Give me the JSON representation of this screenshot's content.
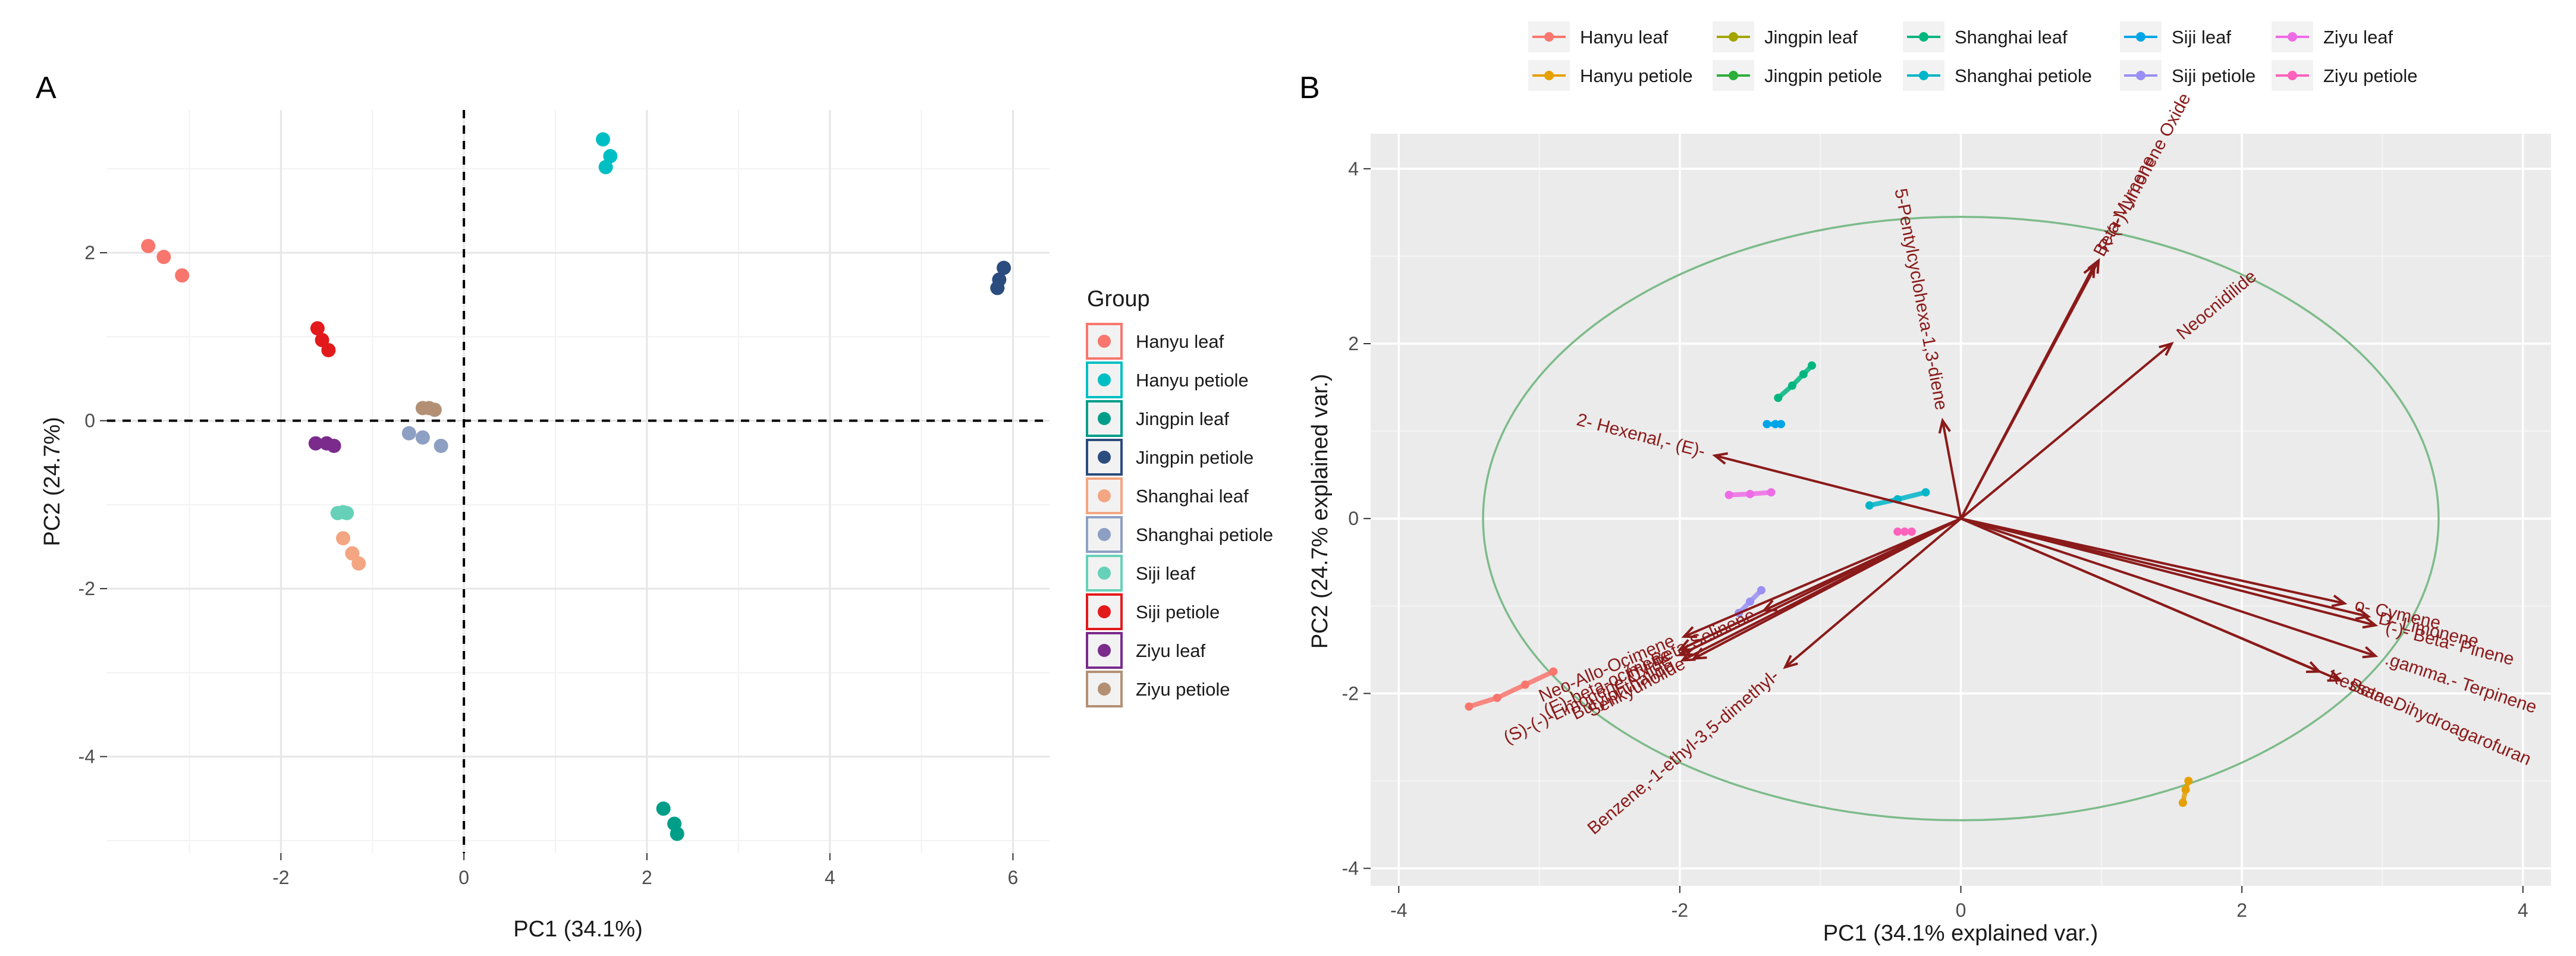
{
  "chart_data": [
    {
      "panel": "A",
      "type": "scatter",
      "xlabel": "PC1 (34.1%)",
      "ylabel": "PC2 (24.7%)",
      "xlim": [
        -3.9,
        6.4
      ],
      "ylim": [
        -5.15,
        3.7
      ],
      "xticks": [
        -2,
        0,
        2,
        4,
        6
      ],
      "yticks": [
        -4,
        -2,
        0,
        2
      ],
      "grid": true,
      "reference_lines": {
        "x": 0,
        "y": 0,
        "style": "dashed"
      },
      "legend_title": "Group",
      "legend_position": "right",
      "groups": [
        {
          "name": "Hanyu leaf",
          "color": "#F8766D",
          "points": [
            [
              -3.45,
              2.08
            ],
            [
              -3.28,
              1.95
            ],
            [
              -3.08,
              1.73
            ]
          ]
        },
        {
          "name": "Hanyu petiole",
          "color": "#00BFC4",
          "points": [
            [
              1.52,
              3.35
            ],
            [
              1.6,
              3.15
            ],
            [
              1.55,
              3.02
            ]
          ]
        },
        {
          "name": "Jingpin leaf",
          "color": "#009E89",
          "points": [
            [
              2.18,
              -4.62
            ],
            [
              2.3,
              -4.8
            ],
            [
              2.33,
              -4.92
            ]
          ]
        },
        {
          "name": "Jingpin petiole",
          "color": "#2B4C7E",
          "points": [
            [
              5.9,
              1.82
            ],
            [
              5.85,
              1.68
            ],
            [
              5.83,
              1.58
            ]
          ]
        },
        {
          "name": "Shanghai leaf",
          "color": "#F4A582",
          "points": [
            [
              -1.32,
              -1.4
            ],
            [
              -1.22,
              -1.58
            ],
            [
              -1.15,
              -1.7
            ]
          ]
        },
        {
          "name": "Shanghai petiole",
          "color": "#8D9FC3",
          "points": [
            [
              -0.6,
              -0.15
            ],
            [
              -0.45,
              -0.2
            ],
            [
              -0.25,
              -0.3
            ]
          ]
        },
        {
          "name": "Siji leaf",
          "color": "#66D1B8",
          "points": [
            [
              -1.38,
              -1.1
            ],
            [
              -1.32,
              -1.09
            ],
            [
              -1.28,
              -1.1
            ]
          ]
        },
        {
          "name": "Siji petiole",
          "color": "#E31A1C",
          "points": [
            [
              -1.6,
              1.1
            ],
            [
              -1.55,
              0.96
            ],
            [
              -1.48,
              0.84
            ]
          ]
        },
        {
          "name": "Ziyu leaf",
          "color": "#7B2B8C",
          "points": [
            [
              -1.62,
              -0.27
            ],
            [
              -1.5,
              -0.27
            ],
            [
              -1.42,
              -0.3
            ]
          ]
        },
        {
          "name": "Ziyu petiole",
          "color": "#B39074",
          "points": [
            [
              -0.45,
              0.15
            ],
            [
              -0.38,
              0.15
            ],
            [
              -0.32,
              0.13
            ]
          ]
        }
      ]
    },
    {
      "panel": "B",
      "type": "biplot",
      "xlabel": "PC1 (34.1% explained var.)",
      "ylabel": "PC2 (24.7% explained var.)",
      "xlim": [
        -4.2,
        4.2
      ],
      "ylim": [
        -4.2,
        4.4
      ],
      "xticks": [
        -4,
        -2,
        0,
        2,
        4
      ],
      "yticks": [
        -4,
        -2,
        0,
        2,
        4
      ],
      "grid": true,
      "legend_position": "top",
      "circle": {
        "center": [
          0,
          0
        ],
        "rx": 3.4,
        "ry": 3.45,
        "color": "#7DBB8A"
      },
      "groups": [
        {
          "name": "Hanyu leaf",
          "color": "#F8766D",
          "points": [
            [
              -3.5,
              -2.15
            ],
            [
              -3.3,
              -2.05
            ],
            [
              -3.1,
              -1.9
            ],
            [
              -2.9,
              -1.75
            ]
          ]
        },
        {
          "name": "Hanyu petiole",
          "color": "#E69F00",
          "points": [
            [
              1.58,
              -3.25
            ],
            [
              1.6,
              -3.1
            ],
            [
              1.62,
              -3.0
            ]
          ]
        },
        {
          "name": "Jingpin leaf",
          "color": "#A3A500",
          "points": []
        },
        {
          "name": "Jingpin petiole",
          "color": "#2CAE3A",
          "points": []
        },
        {
          "name": "Shanghai leaf",
          "color": "#00B67F",
          "points": [
            [
              -1.3,
              1.38
            ],
            [
              -1.2,
              1.52
            ],
            [
              -1.12,
              1.65
            ],
            [
              -1.06,
              1.75
            ]
          ]
        },
        {
          "name": "Shanghai petiole",
          "color": "#00B5C8",
          "points": [
            [
              -0.65,
              0.15
            ],
            [
              -0.45,
              0.22
            ],
            [
              -0.25,
              0.3
            ]
          ]
        },
        {
          "name": "Siji leaf",
          "color": "#00A5E8",
          "points": [
            [
              -1.38,
              1.08
            ],
            [
              -1.32,
              1.08
            ],
            [
              -1.28,
              1.08
            ]
          ]
        },
        {
          "name": "Siji petiole",
          "color": "#9A8FF4",
          "points": [
            [
              -1.58,
              -1.08
            ],
            [
              -1.5,
              -0.95
            ],
            [
              -1.42,
              -0.82
            ]
          ]
        },
        {
          "name": "Ziyu leaf",
          "color": "#EE6BE6",
          "points": [
            [
              -1.65,
              0.27
            ],
            [
              -1.5,
              0.28
            ],
            [
              -1.35,
              0.3
            ]
          ]
        },
        {
          "name": "Ziyu petiole",
          "color": "#FF62BC",
          "points": [
            [
              -0.45,
              -0.15
            ],
            [
              -0.4,
              -0.15
            ],
            [
              -0.35,
              -0.15
            ]
          ]
        }
      ],
      "loadings": [
        {
          "label": "5-Pentylcyclohexa-1,3-diene",
          "x": -0.13,
          "y": 1.12
        },
        {
          "label": "R-(+)-Limonene Oxide",
          "x": 0.98,
          "y": 2.95
        },
        {
          "label": "Beta-Myrcene",
          "x": 0.95,
          "y": 2.9
        },
        {
          "label": "Neocnidilide",
          "x": 1.5,
          "y": 2.0
        },
        {
          "label": "2- Hexenal,- (E)-",
          "x": -1.75,
          "y": 0.72
        },
        {
          "label": "Neo-Allo-Ocimene",
          "x": -1.97,
          "y": -1.35
        },
        {
          "label": "(+)-Beta-Selinene",
          "x": -1.4,
          "y": -1.05
        },
        {
          "label": "(E)-beta-ocimene",
          "x": -2.0,
          "y": -1.5
        },
        {
          "label": "(S)-(-)-Limonene Oxide",
          "x": -2.0,
          "y": -1.56
        },
        {
          "label": "Butylphthalide",
          "x": -1.98,
          "y": -1.62
        },
        {
          "label": "Senkyunolide",
          "x": -1.9,
          "y": -1.6
        },
        {
          "label": "Benzene,-1-ethyl-3,5-dimethyl-",
          "x": -1.25,
          "y": -1.7
        },
        {
          "label": "o- Cymene",
          "x": 2.73,
          "y": -0.97
        },
        {
          "label": "D- Limonene",
          "x": 2.9,
          "y": -1.12
        },
        {
          "label": "(-)- Beta- Pinene",
          "x": 2.95,
          "y": -1.22
        },
        {
          "label": "Kessane",
          "x": 2.55,
          "y": -1.75
        },
        {
          "label": ".gamma.- Terpinene",
          "x": 2.95,
          "y": -1.57
        },
        {
          "label": "Beta.-Dihydroagarofuran",
          "x": 2.7,
          "y": -1.85
        }
      ]
    }
  ]
}
